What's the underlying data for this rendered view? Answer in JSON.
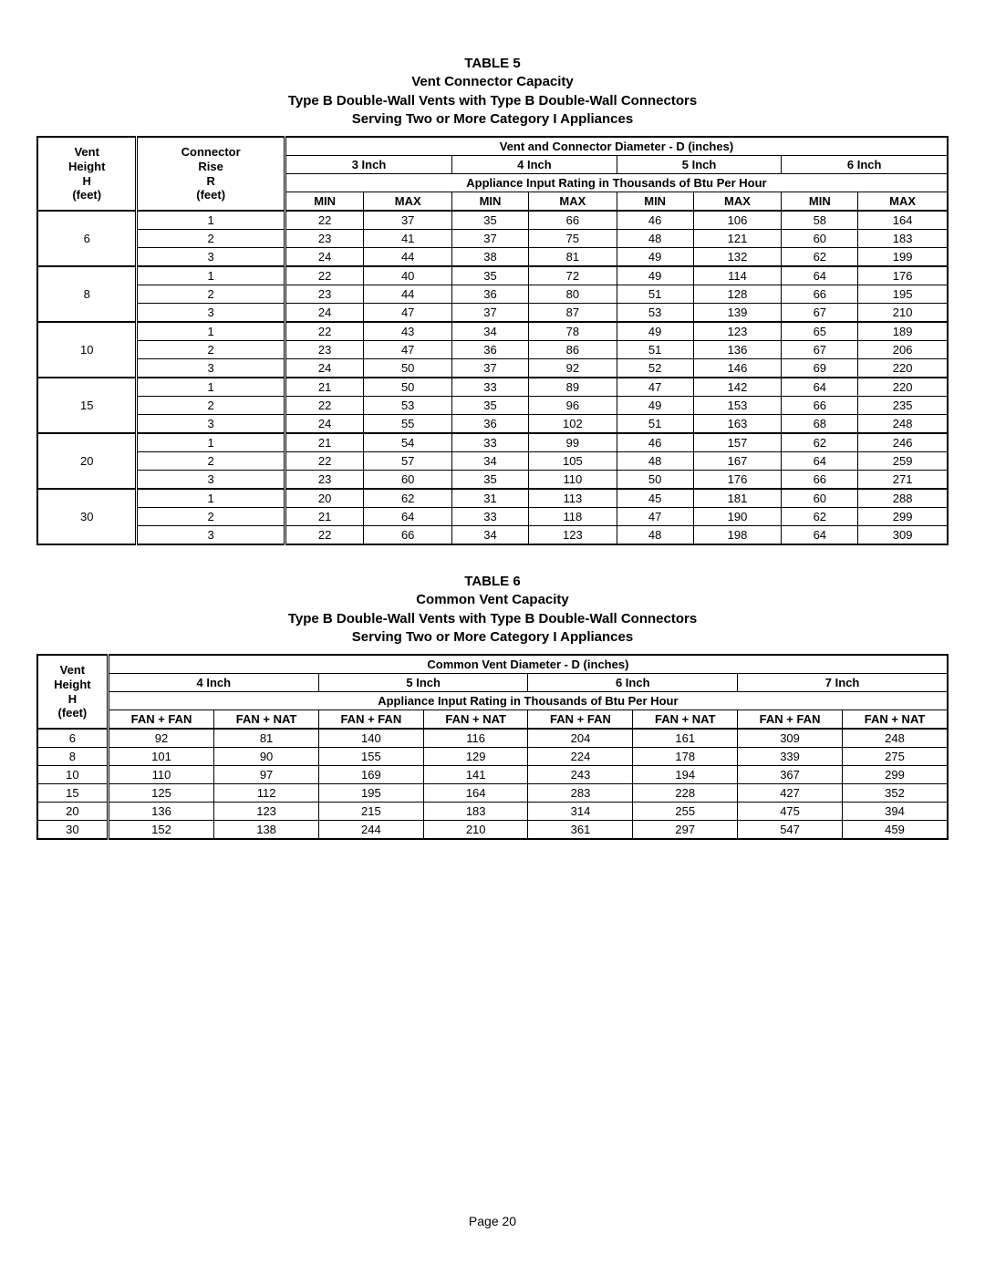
{
  "table5": {
    "title_lines": [
      "TABLE 5",
      "Vent Connector Capacity",
      "Type B Double-Wall Vents with Type B Double-Wall Connectors",
      "Serving Two or More Category I Appliances"
    ],
    "col1_lines": [
      "Vent",
      "Height",
      "H",
      "(feet)"
    ],
    "col2_lines": [
      "Connector",
      "Rise",
      "R",
      "(feet)"
    ],
    "span_header": "Vent and Connector Diameter - D (inches)",
    "size_labels": [
      "3 Inch",
      "4 Inch",
      "5 Inch",
      "6 Inch"
    ],
    "rating_header": "Appliance Input Rating in Thousands of Btu Per Hour",
    "minmax": [
      "MIN",
      "MAX",
      "MIN",
      "MAX",
      "MIN",
      "MAX",
      "MIN",
      "MAX"
    ],
    "groups": [
      {
        "h": "6",
        "rows": [
          [
            "1",
            "22",
            "37",
            "35",
            "66",
            "46",
            "106",
            "58",
            "164"
          ],
          [
            "2",
            "23",
            "41",
            "37",
            "75",
            "48",
            "121",
            "60",
            "183"
          ],
          [
            "3",
            "24",
            "44",
            "38",
            "81",
            "49",
            "132",
            "62",
            "199"
          ]
        ]
      },
      {
        "h": "8",
        "rows": [
          [
            "1",
            "22",
            "40",
            "35",
            "72",
            "49",
            "114",
            "64",
            "176"
          ],
          [
            "2",
            "23",
            "44",
            "36",
            "80",
            "51",
            "128",
            "66",
            "195"
          ],
          [
            "3",
            "24",
            "47",
            "37",
            "87",
            "53",
            "139",
            "67",
            "210"
          ]
        ]
      },
      {
        "h": "10",
        "rows": [
          [
            "1",
            "22",
            "43",
            "34",
            "78",
            "49",
            "123",
            "65",
            "189"
          ],
          [
            "2",
            "23",
            "47",
            "36",
            "86",
            "51",
            "136",
            "67",
            "206"
          ],
          [
            "3",
            "24",
            "50",
            "37",
            "92",
            "52",
            "146",
            "69",
            "220"
          ]
        ]
      },
      {
        "h": "15",
        "rows": [
          [
            "1",
            "21",
            "50",
            "33",
            "89",
            "47",
            "142",
            "64",
            "220"
          ],
          [
            "2",
            "22",
            "53",
            "35",
            "96",
            "49",
            "153",
            "66",
            "235"
          ],
          [
            "3",
            "24",
            "55",
            "36",
            "102",
            "51",
            "163",
            "68",
            "248"
          ]
        ]
      },
      {
        "h": "20",
        "rows": [
          [
            "1",
            "21",
            "54",
            "33",
            "99",
            "46",
            "157",
            "62",
            "246"
          ],
          [
            "2",
            "22",
            "57",
            "34",
            "105",
            "48",
            "167",
            "64",
            "259"
          ],
          [
            "3",
            "23",
            "60",
            "35",
            "110",
            "50",
            "176",
            "66",
            "271"
          ]
        ]
      },
      {
        "h": "30",
        "rows": [
          [
            "1",
            "20",
            "62",
            "31",
            "113",
            "45",
            "181",
            "60",
            "288"
          ],
          [
            "2",
            "21",
            "64",
            "33",
            "118",
            "47",
            "190",
            "62",
            "299"
          ],
          [
            "3",
            "22",
            "66",
            "34",
            "123",
            "48",
            "198",
            "64",
            "309"
          ]
        ]
      }
    ]
  },
  "table6": {
    "title_lines": [
      "TABLE 6",
      "Common Vent Capacity",
      "Type B Double-Wall Vents with Type B Double-Wall Connectors",
      "Serving Two or More Category I Appliances"
    ],
    "col1_lines": [
      "Vent",
      "Height",
      "H",
      "(feet)"
    ],
    "span_header": "Common Vent Diameter - D (inches)",
    "size_labels": [
      "4 Inch",
      "5 Inch",
      "6 Inch",
      "7 Inch"
    ],
    "rating_header": "Appliance Input Rating in Thousands of Btu Per Hour",
    "colpair": [
      "FAN + FAN",
      "FAN + NAT",
      "FAN + FAN",
      "FAN + NAT",
      "FAN + FAN",
      "FAN + NAT",
      "FAN + FAN",
      "FAN + NAT"
    ],
    "rows": [
      [
        "6",
        "92",
        "81",
        "140",
        "116",
        "204",
        "161",
        "309",
        "248"
      ],
      [
        "8",
        "101",
        "90",
        "155",
        "129",
        "224",
        "178",
        "339",
        "275"
      ],
      [
        "10",
        "110",
        "97",
        "169",
        "141",
        "243",
        "194",
        "367",
        "299"
      ],
      [
        "15",
        "125",
        "112",
        "195",
        "164",
        "283",
        "228",
        "427",
        "352"
      ],
      [
        "20",
        "136",
        "123",
        "215",
        "183",
        "314",
        "255",
        "475",
        "394"
      ],
      [
        "30",
        "152",
        "138",
        "244",
        "210",
        "361",
        "297",
        "547",
        "459"
      ]
    ]
  },
  "page_label": "Page 20"
}
